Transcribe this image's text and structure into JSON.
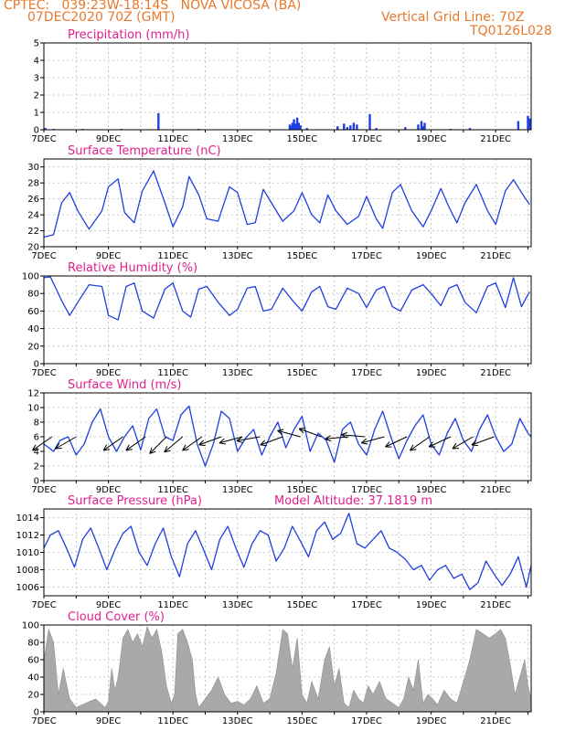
{
  "header": {
    "line1_left": "CPTEC:   039:23W-18:14S   NOVA VICOSA (BA)",
    "line2_left": "07DEC2020 70Z (GMT)",
    "line1_right": "Vertical Grid Line: 70Z",
    "line2_right": "TQ0126L028"
  },
  "colors": {
    "header": "#e8792a",
    "title": "#e0208f",
    "series": "#1f3fe0",
    "cloud": "#a9a9a9",
    "arrow": "#000000"
  },
  "chart_data": [
    {
      "type": "bar",
      "title": "Precipitation (mm/h)",
      "x_tick_labels": [
        "7DEC",
        "9DEC",
        "11DEC",
        "13DEC",
        "15DEC",
        "17DEC",
        "19DEC",
        "21DEC"
      ],
      "x_range_days": [
        7,
        22.1
      ],
      "ylim": [
        0,
        5
      ],
      "y_ticks": [
        0,
        1,
        2,
        3,
        4,
        5
      ],
      "series": [
        {
          "x": [
            7.05,
            7.3,
            8.2,
            9.4,
            10.55,
            11.8,
            14.62,
            14.66,
            14.7,
            14.75,
            14.8,
            14.85,
            14.9,
            14.95,
            15.15,
            16.1,
            16.3,
            16.4,
            16.5,
            16.6,
            16.7,
            17.1,
            17.3,
            18.2,
            18.6,
            18.7,
            18.75,
            18.8,
            19.6,
            20.2,
            21.7,
            22.0,
            22.05
          ],
          "values": [
            0.1,
            0.05,
            0.05,
            0.05,
            0.95,
            0.05,
            0.3,
            0.2,
            0.4,
            0.6,
            0.35,
            0.7,
            0.4,
            0.25,
            0.1,
            0.2,
            0.35,
            0.15,
            0.25,
            0.4,
            0.3,
            0.9,
            0.1,
            0.15,
            0.3,
            0.5,
            0.2,
            0.4,
            0.05,
            0.1,
            0.5,
            0.8,
            0.65
          ]
        }
      ]
    },
    {
      "type": "line",
      "title": "Surface Temperature (nC)",
      "x_tick_labels": [
        "7DEC",
        "9DEC",
        "11DEC",
        "13DEC",
        "15DEC",
        "17DEC",
        "19DEC",
        "21DEC"
      ],
      "x_range_days": [
        7,
        22.1
      ],
      "ylim": [
        20,
        31
      ],
      "y_ticks": [
        20,
        22,
        24,
        26,
        28,
        30
      ],
      "series": [
        {
          "x": [
            7.0,
            7.3,
            7.55,
            7.8,
            8.05,
            8.4,
            8.8,
            9.0,
            9.3,
            9.5,
            9.8,
            10.05,
            10.4,
            10.75,
            11.0,
            11.3,
            11.5,
            11.8,
            12.05,
            12.4,
            12.75,
            13.0,
            13.3,
            13.55,
            13.8,
            14.05,
            14.4,
            14.75,
            15.0,
            15.3,
            15.55,
            15.8,
            16.05,
            16.4,
            16.75,
            17.0,
            17.3,
            17.5,
            17.8,
            18.05,
            18.4,
            18.75,
            19.0,
            19.3,
            19.55,
            19.8,
            20.05,
            20.4,
            20.75,
            21.0,
            21.3,
            21.55,
            21.8,
            22.05
          ],
          "values": [
            21.2,
            21.5,
            25.5,
            26.8,
            24.5,
            22.2,
            24.5,
            27.5,
            28.5,
            24.3,
            23.0,
            27.0,
            29.5,
            25.5,
            22.5,
            25.0,
            28.8,
            26.5,
            23.5,
            23.2,
            27.5,
            26.8,
            22.8,
            23.0,
            27.2,
            25.5,
            23.2,
            24.5,
            26.8,
            24.0,
            23.0,
            26.5,
            24.5,
            22.8,
            23.8,
            26.3,
            23.5,
            22.3,
            26.8,
            27.8,
            24.5,
            22.5,
            24.5,
            27.3,
            25.0,
            23.0,
            25.5,
            27.8,
            24.5,
            22.8,
            27.0,
            28.4,
            26.8,
            25.3
          ]
        }
      ]
    },
    {
      "type": "line",
      "title": "Relative Humidity (%)",
      "x_tick_labels": [
        "7DEC",
        "9DEC",
        "11DEC",
        "13DEC",
        "15DEC",
        "17DEC",
        "19DEC",
        "21DEC"
      ],
      "x_range_days": [
        7,
        22.1
      ],
      "ylim": [
        0,
        100
      ],
      "y_ticks": [
        0,
        20,
        40,
        60,
        80,
        100
      ],
      "series": [
        {
          "x": [
            7.0,
            7.2,
            7.55,
            7.8,
            8.05,
            8.4,
            8.8,
            9.0,
            9.3,
            9.55,
            9.8,
            10.05,
            10.4,
            10.75,
            11.0,
            11.3,
            11.55,
            11.8,
            12.05,
            12.4,
            12.75,
            13.0,
            13.3,
            13.55,
            13.8,
            14.05,
            14.4,
            14.75,
            15.0,
            15.3,
            15.55,
            15.8,
            16.05,
            16.4,
            16.75,
            17.0,
            17.3,
            17.55,
            17.8,
            18.05,
            18.4,
            18.75,
            19.0,
            19.3,
            19.55,
            19.8,
            20.05,
            20.4,
            20.75,
            21.0,
            21.3,
            21.55,
            21.8,
            22.05
          ],
          "values": [
            98,
            99,
            72,
            55,
            70,
            90,
            88,
            55,
            50,
            88,
            92,
            60,
            52,
            85,
            92,
            60,
            53,
            85,
            88,
            70,
            55,
            62,
            86,
            88,
            60,
            62,
            86,
            70,
            60,
            82,
            88,
            65,
            62,
            86,
            80,
            64,
            84,
            88,
            65,
            60,
            84,
            90,
            80,
            66,
            86,
            90,
            70,
            58,
            88,
            92,
            64,
            98,
            65,
            82
          ]
        }
      ]
    },
    {
      "type": "line",
      "title": "Surface Wind (m/s)",
      "x_tick_labels": [
        "7DEC",
        "9DEC",
        "11DEC",
        "13DEC",
        "15DEC",
        "17DEC",
        "19DEC",
        "21DEC"
      ],
      "x_range_days": [
        7,
        22.1
      ],
      "ylim": [
        0,
        12
      ],
      "y_ticks": [
        0,
        2,
        4,
        6,
        8,
        10,
        12
      ],
      "series": [
        {
          "x": [
            7.0,
            7.3,
            7.5,
            7.75,
            8.0,
            8.25,
            8.5,
            8.75,
            9.0,
            9.25,
            9.5,
            9.75,
            10.0,
            10.25,
            10.5,
            10.75,
            11.0,
            11.25,
            11.5,
            11.75,
            12.0,
            12.25,
            12.5,
            12.75,
            13.0,
            13.25,
            13.5,
            13.75,
            14.0,
            14.25,
            14.5,
            14.75,
            15.0,
            15.25,
            15.5,
            15.75,
            16.0,
            16.25,
            16.5,
            16.75,
            17.0,
            17.25,
            17.5,
            17.75,
            18.0,
            18.25,
            18.5,
            18.75,
            19.0,
            19.25,
            19.5,
            19.75,
            20.0,
            20.25,
            20.5,
            20.75,
            21.0,
            21.25,
            21.5,
            21.75,
            22.0,
            22.1
          ],
          "values": [
            5.0,
            4.0,
            5.5,
            6.0,
            3.5,
            5.0,
            8.0,
            9.8,
            6.0,
            4.0,
            6.0,
            7.5,
            4.2,
            8.5,
            9.8,
            6.0,
            5.5,
            9.0,
            10.2,
            5.0,
            2.0,
            5.0,
            9.5,
            8.5,
            4.0,
            5.8,
            7.0,
            3.5,
            6.0,
            8.0,
            4.5,
            7.0,
            8.8,
            4.0,
            6.5,
            5.5,
            2.5,
            7.0,
            8.0,
            5.0,
            3.5,
            7.0,
            9.5,
            6.0,
            3.0,
            5.5,
            7.5,
            9.0,
            5.0,
            3.5,
            6.5,
            8.5,
            5.5,
            4.0,
            7.0,
            9.0,
            6.0,
            4.0,
            5.0,
            8.5,
            6.5,
            6.0
          ]
        }
      ],
      "vector_x": [
        7.25,
        8.0,
        9.45,
        10.15,
        10.8,
        11.3,
        11.9,
        12.5,
        13.15,
        13.7,
        14.4,
        14.95,
        15.6,
        16.45,
        16.95,
        17.55,
        18.25,
        18.95,
        19.6,
        20.3,
        20.95
      ],
      "vector_direction_deg": [
        215,
        210,
        215,
        215,
        225,
        220,
        215,
        200,
        195,
        190,
        200,
        165,
        160,
        185,
        175,
        195,
        205,
        215,
        205,
        210,
        200
      ]
    },
    {
      "type": "line",
      "title": "Surface Pressure (hPa)",
      "annotation": "Model Altitude: 37.1819 m",
      "x_tick_labels": [
        "7DEC",
        "9DEC",
        "11DEC",
        "13DEC",
        "15DEC",
        "17DEC",
        "19DEC",
        "21DEC"
      ],
      "x_range_days": [
        7,
        22.1
      ],
      "ylim": [
        1005,
        1015
      ],
      "y_ticks": [
        1006,
        1008,
        1010,
        1012,
        1014
      ],
      "series": [
        {
          "x": [
            7.0,
            7.2,
            7.45,
            7.7,
            7.95,
            8.2,
            8.45,
            8.7,
            8.95,
            9.2,
            9.45,
            9.7,
            9.95,
            10.2,
            10.45,
            10.7,
            10.95,
            11.2,
            11.45,
            11.7,
            11.95,
            12.2,
            12.45,
            12.7,
            12.95,
            13.2,
            13.45,
            13.7,
            13.95,
            14.2,
            14.45,
            14.7,
            14.95,
            15.2,
            15.45,
            15.7,
            15.95,
            16.2,
            16.45,
            16.7,
            16.95,
            17.2,
            17.45,
            17.7,
            17.95,
            18.2,
            18.45,
            18.7,
            18.95,
            19.2,
            19.45,
            19.7,
            19.95,
            20.2,
            20.45,
            20.7,
            20.95,
            21.2,
            21.45,
            21.7,
            21.95,
            22.1
          ],
          "values": [
            1010.5,
            1012.0,
            1012.5,
            1010.5,
            1008.3,
            1011.5,
            1012.8,
            1010.5,
            1008.0,
            1010.3,
            1012.2,
            1013.0,
            1010.0,
            1008.5,
            1011.0,
            1012.8,
            1009.5,
            1007.2,
            1011.0,
            1012.5,
            1010.3,
            1008.0,
            1011.5,
            1013.0,
            1010.5,
            1008.3,
            1011.0,
            1012.5,
            1012.0,
            1009.0,
            1010.5,
            1013.0,
            1011.3,
            1009.5,
            1012.5,
            1013.5,
            1011.5,
            1012.2,
            1014.5,
            1011.0,
            1010.5,
            1011.5,
            1012.5,
            1010.5,
            1010.0,
            1009.2,
            1008.0,
            1008.5,
            1006.8,
            1008.0,
            1008.5,
            1007.0,
            1007.5,
            1005.7,
            1006.5,
            1009.0,
            1007.5,
            1006.2,
            1007.5,
            1009.5,
            1006.0,
            1008.5
          ]
        }
      ]
    },
    {
      "type": "area",
      "title": "Cloud Cover (%)",
      "x_tick_labels": [
        "7DEC",
        "9DEC",
        "11DEC",
        "13DEC",
        "15DEC",
        "17DEC",
        "19DEC",
        "21DEC"
      ],
      "x_range_days": [
        7,
        22.1
      ],
      "ylim": [
        0,
        100
      ],
      "y_ticks": [
        0,
        20,
        40,
        60,
        80,
        100
      ],
      "series": [
        {
          "x": [
            7.0,
            7.15,
            7.3,
            7.45,
            7.6,
            7.8,
            8.0,
            8.3,
            8.6,
            8.9,
            9.0,
            9.1,
            9.2,
            9.3,
            9.45,
            9.6,
            9.75,
            9.9,
            10.05,
            10.2,
            10.35,
            10.5,
            10.65,
            10.8,
            10.95,
            11.05,
            11.15,
            11.3,
            11.45,
            11.6,
            11.7,
            11.8,
            12.0,
            12.2,
            12.4,
            12.6,
            12.8,
            13.0,
            13.2,
            13.4,
            13.6,
            13.8,
            14.0,
            14.2,
            14.4,
            14.55,
            14.7,
            14.85,
            15.0,
            15.15,
            15.3,
            15.5,
            15.7,
            15.85,
            16.0,
            16.15,
            16.3,
            16.45,
            16.6,
            16.75,
            16.9,
            17.05,
            17.2,
            17.4,
            17.6,
            17.8,
            18.0,
            18.15,
            18.3,
            18.45,
            18.6,
            18.75,
            18.9,
            19.05,
            19.2,
            19.4,
            19.6,
            19.8,
            20.0,
            20.2,
            20.4,
            20.6,
            20.8,
            21.0,
            21.15,
            21.3,
            21.45,
            21.6,
            21.75,
            21.9,
            22.0,
            22.1
          ],
          "values": [
            60,
            95,
            80,
            20,
            50,
            15,
            5,
            10,
            15,
            5,
            12,
            50,
            25,
            40,
            85,
            95,
            80,
            90,
            75,
            98,
            85,
            95,
            70,
            30,
            10,
            20,
            90,
            95,
            80,
            60,
            20,
            5,
            15,
            25,
            40,
            20,
            10,
            12,
            8,
            15,
            30,
            10,
            15,
            45,
            95,
            90,
            50,
            85,
            20,
            10,
            35,
            15,
            60,
            75,
            30,
            50,
            10,
            5,
            25,
            15,
            10,
            30,
            20,
            35,
            15,
            10,
            5,
            15,
            40,
            25,
            60,
            10,
            20,
            15,
            8,
            25,
            15,
            10,
            35,
            60,
            95,
            90,
            85,
            90,
            95,
            85,
            55,
            20,
            40,
            60,
            30,
            15
          ]
        }
      ]
    }
  ]
}
